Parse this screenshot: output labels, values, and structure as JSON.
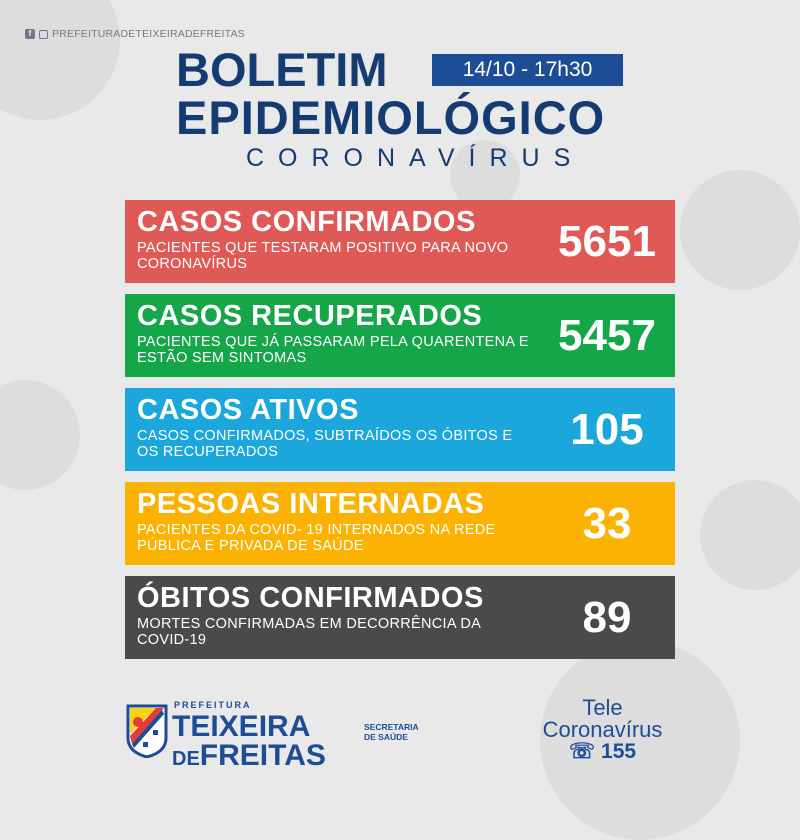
{
  "social": {
    "handle": "PREFEITURADETEIXEIRADEFREITAS",
    "icons": [
      "facebook-icon",
      "instagram-icon"
    ]
  },
  "header": {
    "title_line1": "BOLETIM",
    "title_line2": "EPIDEMIOLÓGICO",
    "subtitle": "CORONAVÍRUS",
    "date": "14/10 - 17h30"
  },
  "cards": [
    {
      "title": "CASOS CONFIRMADOS",
      "description": "PACIENTES QUE TESTARAM POSITIVO PARA NOVO CORONAVÍRUS",
      "value": "5651",
      "color": "#df5a56"
    },
    {
      "title": "CASOS RECUPERADOS",
      "description": "PACIENTES QUE JÁ PASSARAM PELA QUARENTENA E ESTÃO SEM SINTOMAS",
      "value": "5457",
      "color": "#16a64a"
    },
    {
      "title": "CASOS ATIVOS",
      "description": "CASOS CONFIRMADOS, SUBTRAÍDOS OS ÓBITOS E OS RECUPERADOS",
      "value": "105",
      "color": "#1ba6dc"
    },
    {
      "title": "PESSOAS INTERNADAS",
      "description": "PACIENTES DA COVID- 19 INTERNADOS NA REDE PÚBLICA E PRIVADA DE SAÚDE",
      "value": "33",
      "color": "#fbb203"
    },
    {
      "title": "ÓBITOS CONFIRMADOS",
      "description": "MORTES CONFIRMADAS EM DECORRÊNCIA DA COVID-19",
      "value": "89",
      "color": "#4a4a4a"
    }
  ],
  "footer": {
    "prefeitura": "PREFEITURA",
    "city_line1": "TEIXEIRA",
    "city_de": "DE",
    "city_line2": "FREITAS",
    "secretaria_line1": "SECRETARIA",
    "secretaria_line2": "DE SAÚDE",
    "tele_line1": "Tele",
    "tele_line2": "Coronavírus",
    "phone": "155"
  },
  "colors": {
    "navy": "#143c73",
    "date_box": "#1d4d95",
    "background": "#e9e9e9"
  }
}
